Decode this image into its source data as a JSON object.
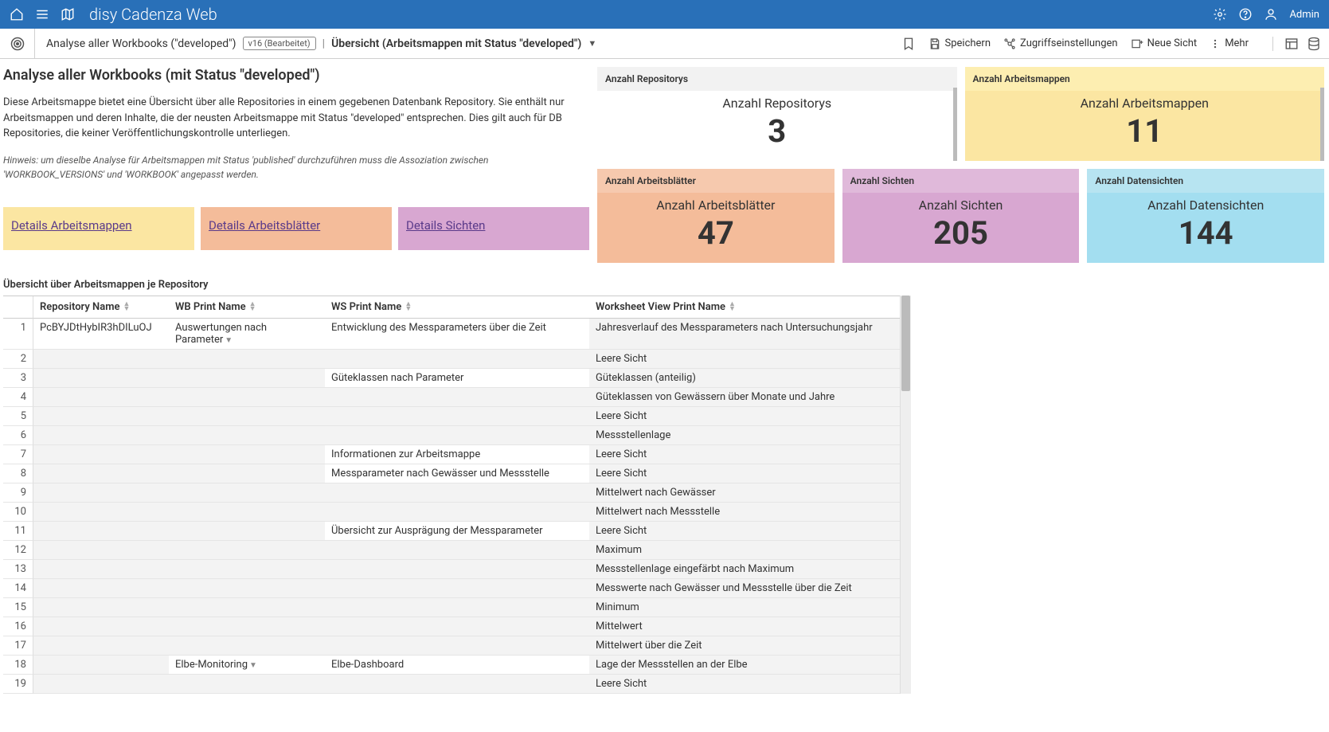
{
  "banner": {
    "app_title": "disy Cadenza Web",
    "user_label": "Admin"
  },
  "subheader": {
    "breadcrumb_title": "Analyse aller Workbooks (\"developed\")",
    "version_badge": "v16 (Bearbeitet)",
    "page_title": "Übersicht (Arbeitsmappen mit Status \"developed\")",
    "actions": {
      "save": "Speichern",
      "access": "Zugriffseinstellungen",
      "new_view": "Neue Sicht",
      "more": "Mehr"
    }
  },
  "intro": {
    "heading": "Analyse aller Workbooks (mit Status \"developed\")",
    "description": "Diese Arbeitsmappe bietet eine Übersicht über alle Repositories in einem gegebenen Datenbank Repository. Sie enthält nur Arbeitsmappen und deren Inhalte, die der neusten Arbeitsmappe mit Status \"developed\" entsprechen. Dies gilt auch für DB Repositories, die keiner Veröffentlichungskontrolle unterliegen.",
    "hint": "Hinweis: um dieselbe Analyse für Arbeitsmappen mit Status 'published' durchzuführen muss die Assoziation zwischen 'WORKBOOK_VERSIONS' und 'WORKBOOK' angepasst werden."
  },
  "link_tiles": [
    {
      "label": "Details Arbeitsmappen",
      "bg": "#fbe6a2"
    },
    {
      "label": "Details Arbeitsblätter",
      "bg": "#f4bc9a"
    },
    {
      "label": "Details Sichten",
      "bg": "#d8a7d1"
    }
  ],
  "kpis_top": [
    {
      "header": "Anzahl Repositorys",
      "label": "Anzahl Repositorys",
      "value": "3",
      "header_bg": "#f2f2f2",
      "body_bg": "#ffffff",
      "scroll": true
    },
    {
      "header": "Anzahl Arbeitsmappen",
      "label": "Anzahl Arbeitsmappen",
      "value": "11",
      "header_bg": "#fdeeb1",
      "body_bg": "#fbe6a2",
      "scroll": true
    }
  ],
  "kpis_bottom": [
    {
      "header": "Anzahl Arbeitsblätter",
      "label": "Anzahl Arbeitsblätter",
      "value": "47",
      "header_bg": "#f6c9ae",
      "body_bg": "#f4bc9a"
    },
    {
      "header": "Anzahl Sichten",
      "label": "Anzahl Sichten",
      "value": "205",
      "header_bg": "#e0b9da",
      "body_bg": "#d8a7d1"
    },
    {
      "header": "Anzahl Datensichten",
      "label": "Anzahl Datensichten",
      "value": "144",
      "header_bg": "#b7e4f1",
      "body_bg": "#a3def0"
    }
  ],
  "table": {
    "title": "Übersicht über Arbeitsmappen je Repository",
    "columns": [
      "Repository Name",
      "WB Print Name",
      "WS Print Name",
      "Worksheet View Print Name"
    ],
    "rows": [
      {
        "n": 1,
        "repo": "PcBYJDtHybIR3hDILuOJ",
        "wb": "Auswertungen nach Parameter",
        "wb_dd": true,
        "ws": "Entwicklung des Messparameters über die Zeit",
        "view": "Jahresverlauf des Messparameters nach Untersuchungsjahr"
      },
      {
        "n": 2,
        "repo": "",
        "wb": "",
        "ws": "",
        "view": "Leere Sicht"
      },
      {
        "n": 3,
        "repo": "",
        "wb": "",
        "ws": "Güteklassen nach Parameter",
        "view": "Güteklassen (anteilig)"
      },
      {
        "n": 4,
        "repo": "",
        "wb": "",
        "ws": "",
        "view": "Güteklassen von Gewässern über Monate und Jahre"
      },
      {
        "n": 5,
        "repo": "",
        "wb": "",
        "ws": "",
        "view": "Leere Sicht"
      },
      {
        "n": 6,
        "repo": "",
        "wb": "",
        "ws": "",
        "view": "Messstellenlage"
      },
      {
        "n": 7,
        "repo": "",
        "wb": "",
        "ws": "Informationen zur Arbeitsmappe",
        "view": "Leere Sicht"
      },
      {
        "n": 8,
        "repo": "",
        "wb": "",
        "ws": "Messparameter nach Gewässer und Messstelle",
        "view": "Leere Sicht"
      },
      {
        "n": 9,
        "repo": "",
        "wb": "",
        "ws": "",
        "view": "Mittelwert nach Gewässer"
      },
      {
        "n": 10,
        "repo": "",
        "wb": "",
        "ws": "",
        "view": "Mittelwert nach Messstelle"
      },
      {
        "n": 11,
        "repo": "",
        "wb": "",
        "ws": "Übersicht zur Ausprägung der Messparameter",
        "view": "Leere Sicht"
      },
      {
        "n": 12,
        "repo": "",
        "wb": "",
        "ws": "",
        "view": "Maximum"
      },
      {
        "n": 13,
        "repo": "",
        "wb": "",
        "ws": "",
        "view": "Messstellenlage eingefärbt nach Maximum"
      },
      {
        "n": 14,
        "repo": "",
        "wb": "",
        "ws": "",
        "view": "Messwerte nach Gewässer und Messstelle über die Zeit"
      },
      {
        "n": 15,
        "repo": "",
        "wb": "",
        "ws": "",
        "view": "Minimum"
      },
      {
        "n": 16,
        "repo": "",
        "wb": "",
        "ws": "",
        "view": "Mittelwert"
      },
      {
        "n": 17,
        "repo": "",
        "wb": "",
        "ws": "",
        "view": "Mittelwert über die Zeit"
      },
      {
        "n": 18,
        "repo": "",
        "wb": "Elbe-Monitoring",
        "wb_dd": true,
        "ws": "Elbe-Dashboard",
        "view": "Lage der Messstellen an der Elbe"
      },
      {
        "n": 19,
        "repo": "",
        "wb": "",
        "ws": "",
        "view": "Leere Sicht"
      }
    ]
  }
}
